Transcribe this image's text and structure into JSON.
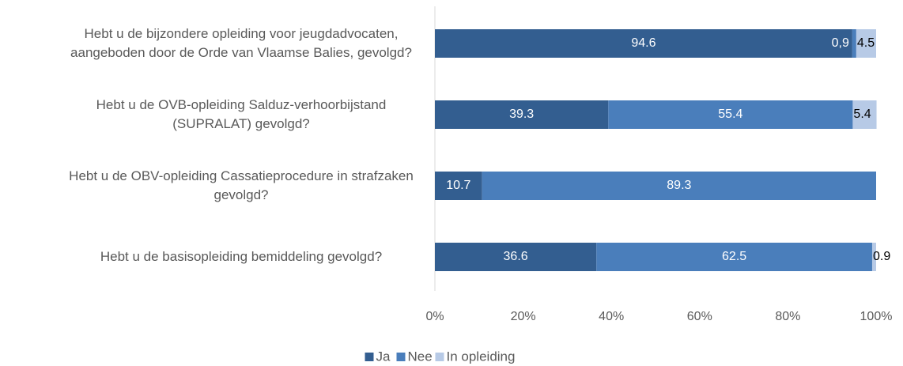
{
  "chart_data": {
    "type": "stacked-barh",
    "categories": [
      "Hebt u de bijzondere opleiding voor jeugdadvocaten, aangeboden door de Orde van Vlaamse Balies, gevolgd?",
      "Hebt u de OVB-opleiding Salduz-verhoorbijstand (SUPRALAT) gevolgd?",
      "Hebt u de OBV-opleiding Cassatieprocedure in strafzaken gevolgd?",
      "Hebt u de basisopleiding bemiddeling gevolgd?"
    ],
    "series": [
      {
        "name": "Ja",
        "color": "#335e90",
        "values": [
          94.6,
          39.3,
          10.7,
          36.6
        ]
      },
      {
        "name": "Nee",
        "color": "#4a7ebb",
        "values": [
          0.9,
          55.4,
          89.3,
          62.5
        ],
        "value_labels": [
          "0,9",
          "55.4",
          "89.3",
          "62.5"
        ]
      },
      {
        "name": "In opleiding",
        "color": "#b7cae6",
        "values": [
          4.5,
          5.4,
          null,
          0.9
        ]
      }
    ],
    "xlim": [
      0,
      100
    ],
    "xticks": [
      {
        "value": 0,
        "label": "0%"
      },
      {
        "value": 20,
        "label": "20%"
      },
      {
        "value": 40,
        "label": "40%"
      },
      {
        "value": 60,
        "label": "60%"
      },
      {
        "value": 80,
        "label": "80%"
      },
      {
        "value": 100,
        "label": "100%"
      }
    ],
    "legend": "bottom"
  }
}
